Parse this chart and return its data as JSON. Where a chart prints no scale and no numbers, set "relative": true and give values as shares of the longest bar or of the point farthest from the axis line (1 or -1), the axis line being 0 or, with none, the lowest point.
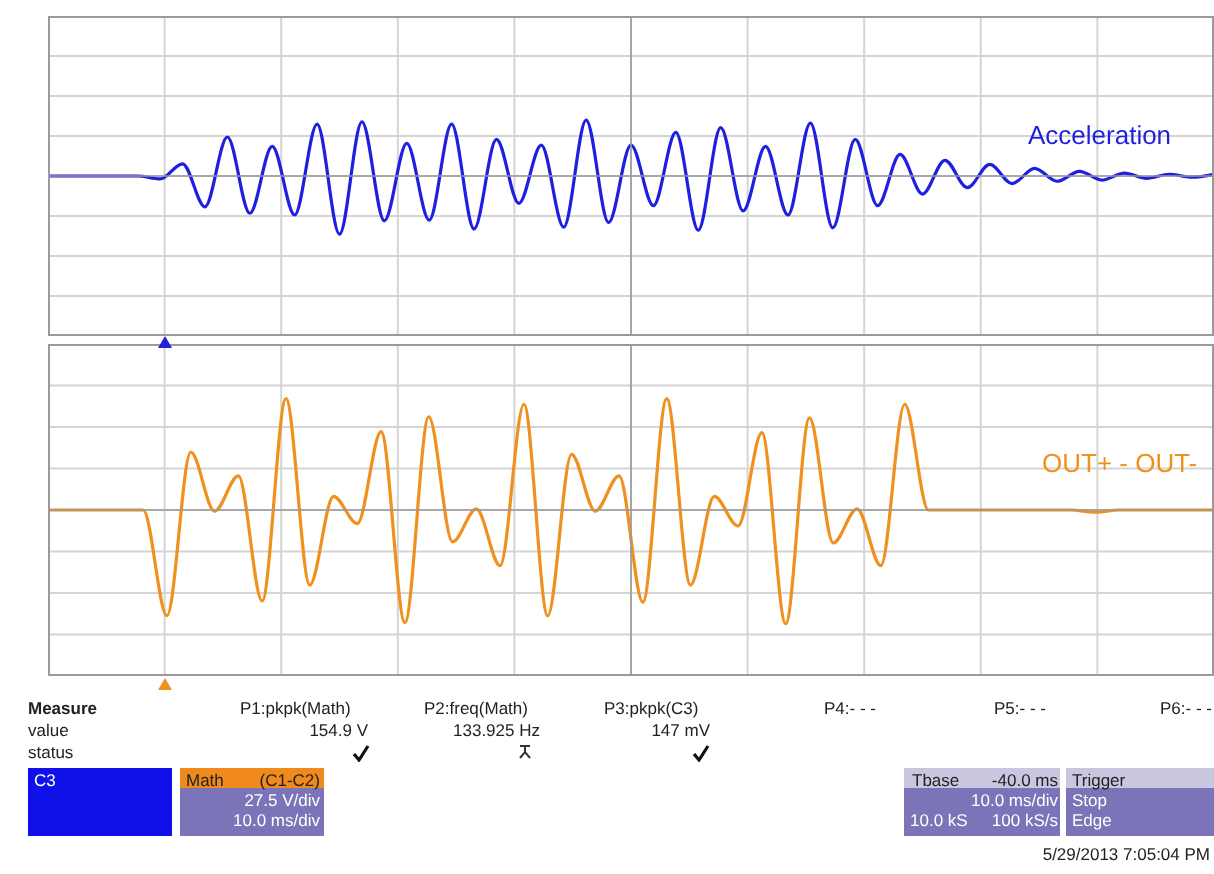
{
  "chart_data": [
    {
      "type": "line",
      "relative": true,
      "grid": true,
      "categories": [
        null,
        null,
        null,
        null,
        null,
        null,
        null,
        null,
        null,
        null,
        null,
        null,
        null,
        null,
        null,
        null,
        null,
        null,
        null,
        null,
        null,
        null,
        null,
        null,
        null,
        null,
        null,
        null,
        null,
        null,
        null,
        null,
        null,
        null,
        null,
        null,
        null,
        null,
        null,
        null,
        null,
        null,
        null,
        null,
        null,
        null,
        null,
        null,
        null,
        null,
        null,
        null,
        null
      ],
      "series": [
        {
          "name": "Acceleration",
          "color": "#1f1fe0",
          "values": [
            0,
            0,
            0,
            0,
            0,
            -0.05,
            0.21,
            -0.53,
            0.67,
            -0.64,
            0.51,
            -0.67,
            0.89,
            -1,
            0.93,
            -0.77,
            0.56,
            -0.76,
            0.89,
            -0.91,
            0.63,
            -0.47,
            0.53,
            -0.88,
            0.96,
            -0.8,
            0.53,
            -0.51,
            0.75,
            -0.93,
            0.83,
            -0.6,
            0.51,
            -0.67,
            0.91,
            -0.89,
            0.63,
            -0.51,
            0.37,
            -0.31,
            0.27,
            -0.2,
            0.2,
            -0.13,
            0.13,
            -0.09,
            0.08,
            -0.07,
            0.05,
            -0.04,
            0.03,
            -0.02,
            0.03
          ]
        }
      ]
    },
    {
      "type": "line",
      "relative": true,
      "grid": true,
      "categories": [
        null,
        null,
        null,
        null,
        null,
        null,
        null,
        null,
        null,
        null,
        null,
        null,
        null,
        null,
        null,
        null,
        null,
        null,
        null,
        null,
        null,
        null,
        null,
        null,
        null,
        null,
        null,
        null,
        null,
        null,
        null,
        null,
        null,
        null,
        null,
        null,
        null,
        null,
        null,
        null,
        null,
        null,
        null,
        null,
        null,
        null,
        null,
        null,
        null,
        null
      ],
      "series": [
        {
          "name": "OUT+ - OUT-",
          "color": "#f0901e",
          "values": [
            0,
            0,
            0,
            0,
            0,
            -0.93,
            0.51,
            -0.01,
            0.3,
            -0.8,
            0.98,
            -0.66,
            0.12,
            -0.12,
            0.69,
            -0.99,
            0.82,
            -0.28,
            0.01,
            -0.49,
            0.93,
            -0.93,
            0.49,
            -0.01,
            0.3,
            -0.81,
            0.98,
            -0.66,
            0.12,
            -0.14,
            0.68,
            -1,
            0.81,
            -0.29,
            0.01,
            -0.49,
            0.93,
            0,
            0,
            0,
            0,
            0,
            0,
            0,
            -0.02,
            0,
            0,
            0,
            0,
            0
          ]
        }
      ]
    },
    {
      "type": "other",
      "annotations": [
        "Measure",
        "value",
        "status",
        "P1:pkpk(Math)",
        "154.9 V",
        "P2:freq(Math)",
        "133.925 Hz",
        "P3:pkpk(C3)",
        "147 mV",
        "P4:- - -",
        "P5:- - -",
        "P6:- - -",
        "C3",
        "Math",
        "(C1-C2)",
        "27.5 V/div",
        "10.0 ms/div",
        "Tbase",
        "-40.0 ms",
        "10.0 ms/div",
        "10.0 kS",
        "100 kS/s",
        "Trigger",
        "Stop",
        "Edge",
        "5/29/2013 7:05:04 PM"
      ]
    }
  ]
}
